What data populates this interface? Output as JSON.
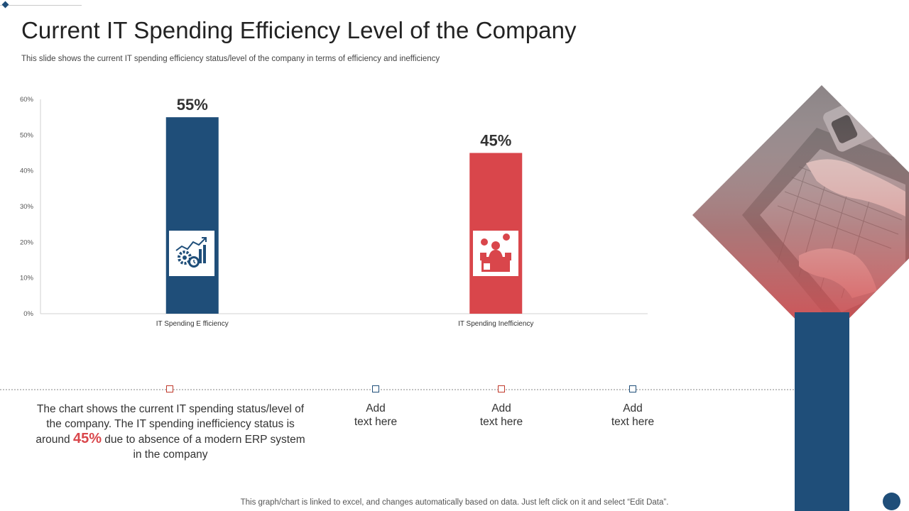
{
  "title": "Current IT Spending Efficiency Level of the Company",
  "subtitle": "This slide shows the current IT  spending efficiency status/level of the company in terms of efficiency and inefficiency",
  "chart_data": {
    "type": "bar",
    "categories": [
      "IT Spending E fficiency",
      "IT Spending Inefficiency"
    ],
    "values": [
      55,
      45
    ],
    "data_labels": [
      "55%",
      "45%"
    ],
    "bar_colors": [
      "#1f4e79",
      "#d9464b"
    ],
    "icons": [
      "growth-gears-icon",
      "stressed-worker-icon"
    ],
    "ylim": [
      0,
      60
    ],
    "yticks": [
      "0%",
      "10%",
      "20%",
      "30%",
      "40%",
      "50%",
      "60%"
    ],
    "ytick_values": [
      0,
      10,
      20,
      30,
      40,
      50,
      60
    ],
    "grid": false,
    "legend": "none"
  },
  "description": {
    "before": "The chart shows the current IT spending status/level of the company. The IT spending inefficiency status is around",
    "highlight": "45%",
    "after": "due to absence of a modern ERP system in the company"
  },
  "add_texts": [
    "Add\ntext here",
    "Add\ntext here",
    "Add\ntext here"
  ],
  "footer": "This graph/chart is linked to excel,  and changes automatically based on data. Just left click on it and select “Edit Data”.",
  "colors": {
    "primary_blue": "#1f4e79",
    "accent_red": "#d9464b"
  }
}
